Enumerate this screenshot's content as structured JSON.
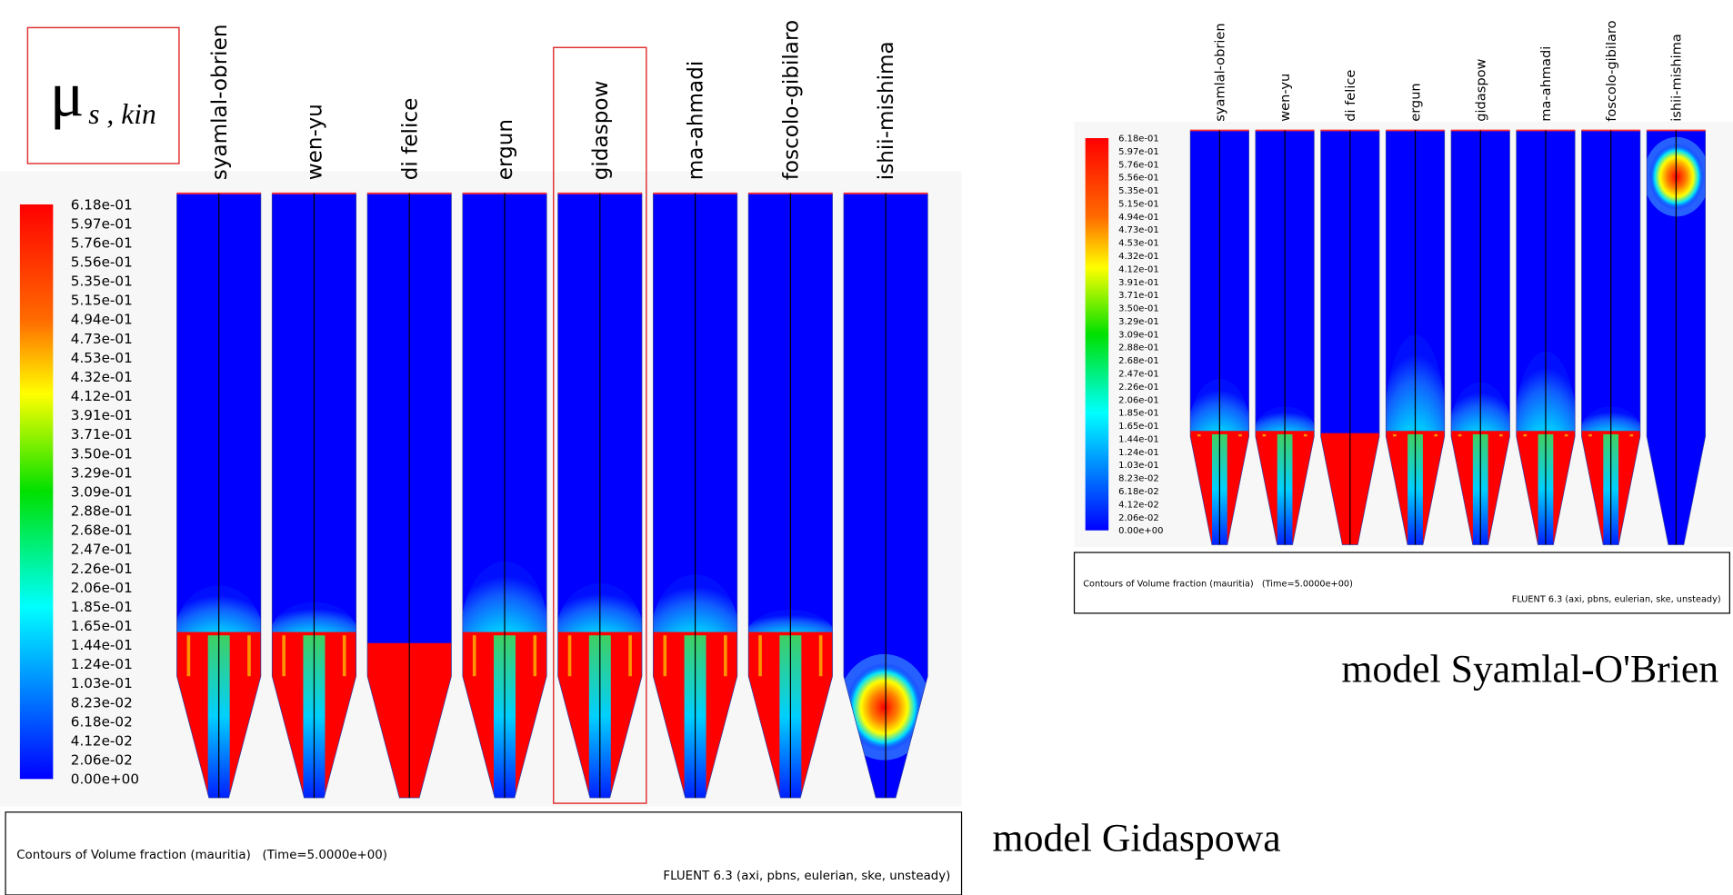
{
  "left_panel": {
    "symbol": {
      "main": "μ",
      "sub": "s , kin"
    },
    "columns": [
      "syamlal-obrien",
      "wen-yu",
      "di felice",
      "ergun",
      "gidaspow",
      "ma-ahmadi",
      "foscolo-gibilaro",
      "ishii-mishima"
    ],
    "colorbar_labels": [
      "6.18e-01",
      "5.97e-01",
      "5.76e-01",
      "5.56e-01",
      "5.35e-01",
      "5.15e-01",
      "4.94e-01",
      "4.73e-01",
      "4.53e-01",
      "4.32e-01",
      "4.12e-01",
      "3.91e-01",
      "3.71e-01",
      "3.50e-01",
      "3.29e-01",
      "3.09e-01",
      "2.88e-01",
      "2.68e-01",
      "2.47e-01",
      "2.26e-01",
      "2.06e-01",
      "1.85e-01",
      "1.65e-01",
      "1.44e-01",
      "1.24e-01",
      "1.03e-01",
      "8.23e-02",
      "6.18e-02",
      "4.12e-02",
      "2.06e-02",
      "0.00e+00"
    ],
    "footer": {
      "left": "Contours of Volume fraction (mauritia)   (Time=5.0000e+00)",
      "right": "FLUENT 6.3 (axi, pbns, eulerian, ske, unsteady)"
    },
    "caption": "model Gidaspowa"
  },
  "right_panel": {
    "columns": [
      "syamlal-obrien",
      "wen-yu",
      "di felice",
      "ergun",
      "gidaspow",
      "ma-ahmadi",
      "foscolo-gibilaro",
      "ishii-mishima"
    ],
    "colorbar_labels": [
      "6.18e-01",
      "5.97e-01",
      "5.76e-01",
      "5.56e-01",
      "5.35e-01",
      "5.15e-01",
      "4.94e-01",
      "4.73e-01",
      "4.53e-01",
      "4.32e-01",
      "4.12e-01",
      "3.91e-01",
      "3.71e-01",
      "3.50e-01",
      "3.29e-01",
      "3.09e-01",
      "2.88e-01",
      "2.68e-01",
      "2.47e-01",
      "2.26e-01",
      "2.06e-01",
      "1.85e-01",
      "1.65e-01",
      "1.44e-01",
      "1.24e-01",
      "1.03e-01",
      "8.23e-02",
      "6.18e-02",
      "4.12e-02",
      "2.06e-02",
      "0.00e+00"
    ],
    "footer": {
      "left": "Contours of Volume fraction (mauritia)   (Time=5.0000e+00)",
      "right": "FLUENT 6.3 (axi, pbns, eulerian, ske, unsteady)"
    },
    "caption": "model Syamlal-O'Brien"
  }
}
